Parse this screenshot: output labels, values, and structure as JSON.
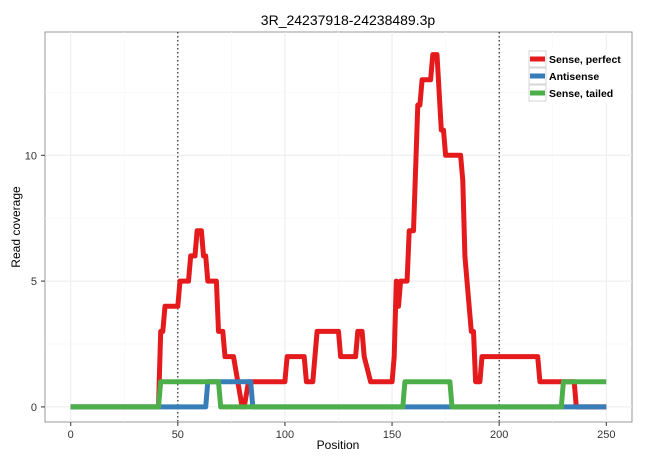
{
  "chart_data": {
    "type": "line",
    "title": "3R_24237918-24238489.3p",
    "xlabel": "Position",
    "ylabel": "Read coverage",
    "xlim": [
      -12,
      262
    ],
    "ylim": [
      -0.6,
      14.9
    ],
    "xticks": [
      0,
      50,
      100,
      150,
      200,
      250
    ],
    "yticks": [
      0,
      5,
      10
    ],
    "vlines": [
      50,
      200
    ],
    "grid": true,
    "legend": "top-right",
    "series": [
      {
        "name": "Sense, perfect",
        "color": "#E41A1C",
        "points": [
          [
            0,
            0
          ],
          [
            41,
            0
          ],
          [
            42,
            3
          ],
          [
            43,
            3
          ],
          [
            44,
            4
          ],
          [
            50,
            4
          ],
          [
            51,
            5
          ],
          [
            55,
            5
          ],
          [
            56,
            6
          ],
          [
            58,
            6
          ],
          [
            59,
            7
          ],
          [
            61,
            7
          ],
          [
            62,
            6
          ],
          [
            63,
            6
          ],
          [
            64,
            5
          ],
          [
            68,
            5
          ],
          [
            69,
            3
          ],
          [
            71,
            3
          ],
          [
            72,
            2
          ],
          [
            76,
            2
          ],
          [
            80,
            0
          ],
          [
            81,
            0
          ],
          [
            83,
            1
          ],
          [
            100,
            1
          ],
          [
            101,
            2
          ],
          [
            109,
            2
          ],
          [
            110,
            1
          ],
          [
            113,
            1
          ],
          [
            115,
            3
          ],
          [
            125,
            3
          ],
          [
            126,
            2
          ],
          [
            133,
            2
          ],
          [
            134,
            3
          ],
          [
            136,
            3
          ],
          [
            137,
            2
          ],
          [
            140,
            1
          ],
          [
            150,
            1
          ],
          [
            151,
            2
          ],
          [
            152,
            5
          ],
          [
            153,
            4
          ],
          [
            154,
            5
          ],
          [
            157,
            5
          ],
          [
            158,
            7
          ],
          [
            160,
            7
          ],
          [
            162,
            12
          ],
          [
            163,
            12
          ],
          [
            164,
            13
          ],
          [
            168,
            13
          ],
          [
            169,
            14
          ],
          [
            171,
            14
          ],
          [
            173,
            11
          ],
          [
            174,
            11
          ],
          [
            175,
            10
          ],
          [
            182,
            10
          ],
          [
            183,
            9
          ],
          [
            184,
            6
          ],
          [
            185,
            5
          ],
          [
            187,
            3
          ],
          [
            188,
            3
          ],
          [
            189,
            1
          ],
          [
            191,
            1
          ],
          [
            192,
            2
          ],
          [
            218,
            2
          ],
          [
            219,
            1
          ],
          [
            235,
            1
          ],
          [
            236,
            0
          ],
          [
            250,
            0
          ]
        ]
      },
      {
        "name": "Antisense",
        "color": "#377EB8",
        "points": [
          [
            0,
            0
          ],
          [
            63,
            0
          ],
          [
            64,
            1
          ],
          [
            84,
            1
          ],
          [
            85,
            0
          ],
          [
            250,
            0
          ]
        ]
      },
      {
        "name": "Sense, tailed",
        "color": "#4DAF4A",
        "points": [
          [
            0,
            0
          ],
          [
            41,
            0
          ],
          [
            42,
            1
          ],
          [
            69,
            1
          ],
          [
            70,
            0
          ],
          [
            155,
            0
          ],
          [
            156,
            1
          ],
          [
            177,
            1
          ],
          [
            178,
            0
          ],
          [
            229,
            0
          ],
          [
            230,
            1
          ],
          [
            250,
            1
          ]
        ]
      }
    ]
  }
}
